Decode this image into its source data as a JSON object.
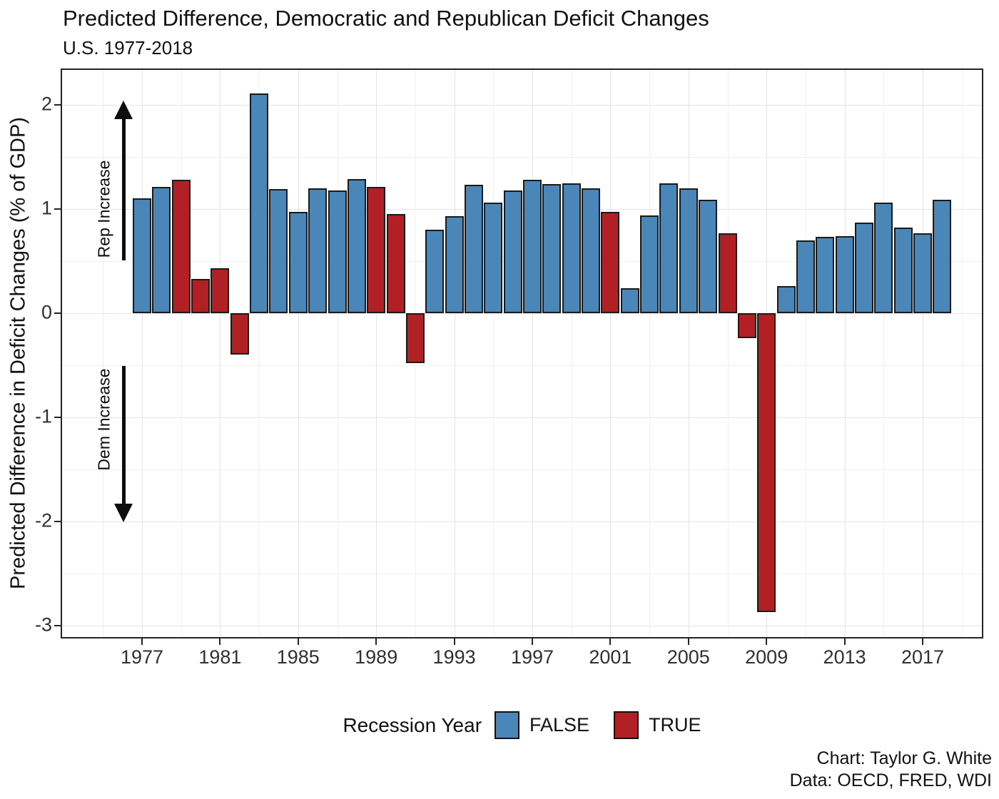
{
  "title": "Predicted Difference, Democratic and Republican Deficit Changes",
  "subtitle": "U.S. 1977-2018",
  "y_axis_title": "Predicted Difference in Deficit Changes (% of GDP)",
  "annotations": {
    "rep_label": "Rep Increase",
    "dem_label": "Dem Increase"
  },
  "legend": {
    "title": "Recession Year",
    "false_label": "FALSE",
    "true_label": "TRUE"
  },
  "caption": {
    "line1": "Chart: Taylor G. White",
    "line2": "Data: OECD, FRED, WDI"
  },
  "colors": {
    "recession_false": "#4A86B8",
    "recession_true": "#B12025",
    "bar_border": "#1A1A1A",
    "grid_major": "#E4E4E4",
    "grid_minor": "#F0F0F0"
  },
  "chart_data": {
    "type": "bar",
    "title": "Predicted Difference, Democratic and Republican Deficit Changes",
    "subtitle": "U.S. 1977-2018",
    "xlabel": "",
    "ylabel": "Predicted Difference in Deficit Changes (% of GDP)",
    "x": [
      1977,
      1978,
      1979,
      1980,
      1981,
      1982,
      1983,
      1984,
      1985,
      1986,
      1987,
      1988,
      1989,
      1990,
      1991,
      1992,
      1993,
      1994,
      1995,
      1996,
      1997,
      1998,
      1999,
      2000,
      2001,
      2002,
      2003,
      2004,
      2005,
      2006,
      2007,
      2008,
      2009,
      2010,
      2011,
      2012,
      2013,
      2014,
      2015,
      2016,
      2017,
      2018
    ],
    "values": [
      1.1,
      1.21,
      1.28,
      0.33,
      0.43,
      -0.4,
      2.11,
      1.19,
      0.97,
      1.2,
      1.18,
      1.29,
      1.21,
      0.95,
      -0.48,
      0.8,
      0.93,
      1.23,
      1.06,
      1.18,
      1.28,
      1.24,
      1.25,
      1.2,
      0.97,
      0.24,
      0.94,
      1.25,
      1.2,
      1.09,
      0.77,
      -0.24,
      -2.87,
      0.26,
      0.7,
      0.73,
      0.74,
      0.87,
      1.06,
      0.82,
      0.77,
      1.09
    ],
    "recession_year": [
      false,
      false,
      true,
      true,
      true,
      true,
      false,
      false,
      false,
      false,
      false,
      false,
      true,
      true,
      true,
      false,
      false,
      false,
      false,
      false,
      false,
      false,
      false,
      false,
      true,
      false,
      false,
      false,
      false,
      false,
      true,
      true,
      true,
      false,
      false,
      false,
      false,
      false,
      false,
      false,
      false,
      false
    ],
    "series_legend": {
      "FALSE": "#4A86B8",
      "TRUE": "#B12025"
    },
    "x_tick_years": [
      1977,
      1981,
      1985,
      1989,
      1993,
      1997,
      2001,
      2005,
      2009,
      2013,
      2017
    ],
    "x_tick_labels": [
      "1977",
      "1981",
      "1985",
      "1989",
      "1993",
      "1997",
      "2001",
      "2005",
      "2009",
      "2013",
      "2017"
    ],
    "x_minor_grid_years": [
      1975,
      1979,
      1983,
      1987,
      1991,
      1995,
      1999,
      2003,
      2007,
      2011,
      2015,
      2019
    ],
    "y_tick_values": [
      2,
      1,
      0,
      -1,
      -2,
      -3
    ],
    "y_tick_labels": [
      "2",
      "1",
      "0",
      "-1",
      "-2",
      "-3"
    ],
    "y_minor_grid_values": [
      1.5,
      0.5,
      -0.5,
      -1.5,
      -2.5
    ],
    "ylim": [
      -3.12,
      2.35
    ],
    "grid": true,
    "legend_position": "bottom",
    "annotation_arrows": [
      {
        "label": "Rep Increase",
        "direction": "up",
        "from_value": 0.5,
        "to_value": 2.0
      },
      {
        "label": "Dem Increase",
        "direction": "down",
        "from_value": -0.5,
        "to_value": -2.0
      }
    ]
  }
}
